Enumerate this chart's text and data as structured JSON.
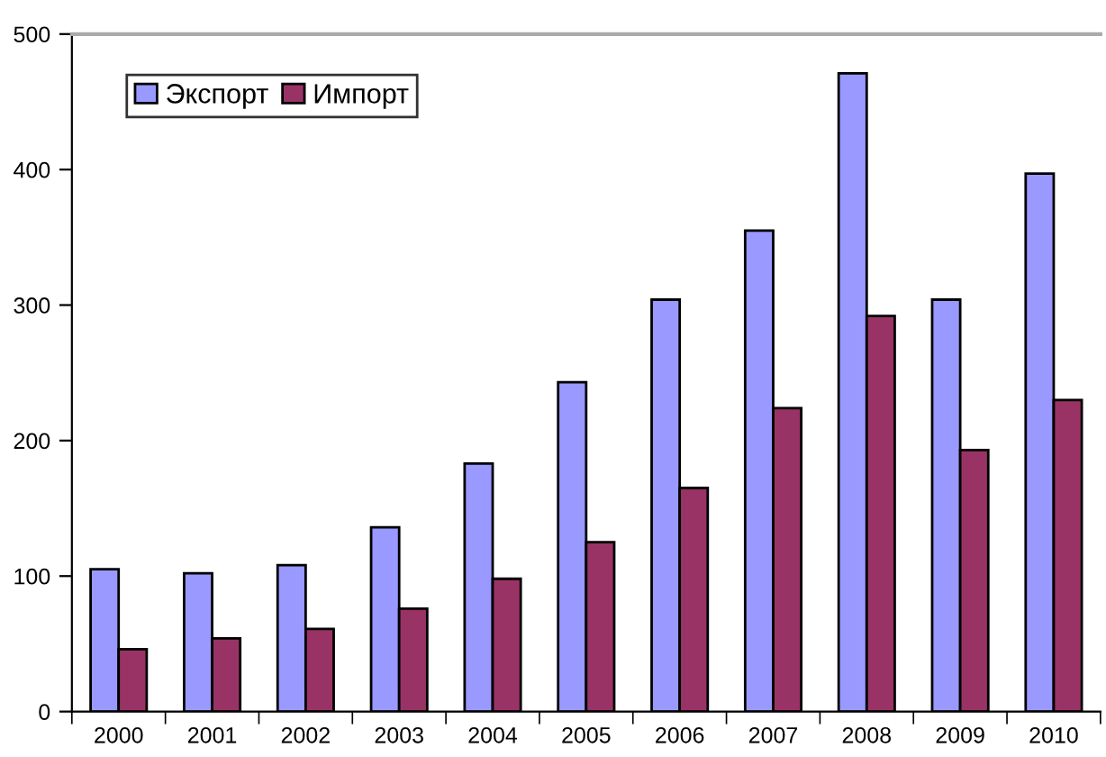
{
  "chart_data": {
    "type": "bar",
    "categories": [
      "2000",
      "2001",
      "2002",
      "2003",
      "2004",
      "2005",
      "2006",
      "2007",
      "2008",
      "2009",
      "2010"
    ],
    "series": [
      {
        "name": "Экспорт",
        "color": "#9999ff",
        "values": [
          105,
          102,
          108,
          136,
          183,
          243,
          304,
          355,
          471,
          304,
          397
        ]
      },
      {
        "name": "Импорт",
        "color": "#993366",
        "values": [
          46,
          54,
          61,
          76,
          98,
          125,
          165,
          224,
          292,
          193,
          230
        ]
      }
    ],
    "ylim": [
      0,
      500
    ],
    "yticks": [
      0,
      100,
      200,
      300,
      400,
      500
    ],
    "grid": false,
    "legend": "top left"
  }
}
